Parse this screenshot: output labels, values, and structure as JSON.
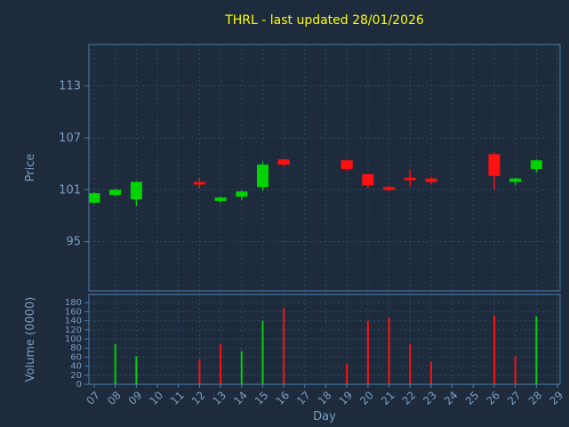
{
  "chart_data": {
    "type": "candlestick",
    "title": "THRL - last updated 28/01/2026",
    "xlabel": "Day",
    "ylabel_price": "Price",
    "ylabel_volume": "Volume (0000)",
    "x_categories": [
      "07",
      "08",
      "09",
      "10",
      "11",
      "12",
      "13",
      "14",
      "15",
      "16",
      "17",
      "18",
      "19",
      "20",
      "21",
      "22",
      "23",
      "24",
      "25",
      "26",
      "27",
      "28",
      "29"
    ],
    "price_ticks": [
      95,
      101,
      107,
      113
    ],
    "volume_ticks": [
      0,
      20,
      40,
      60,
      80,
      100,
      120,
      140,
      160,
      180
    ],
    "price_axis_range": [
      89.3,
      117.8
    ],
    "volume_axis_range": [
      0,
      198
    ],
    "grid": true,
    "colors": {
      "background": "#1d2b3c",
      "grid": "#2e4d6b",
      "axis": "#4d7fae",
      "text": "#7b9ec2",
      "title": "#ffff00",
      "up": "#00d400",
      "down": "#ff1111"
    },
    "candles": [
      {
        "day": "07",
        "open": 99.5,
        "high": 100.7,
        "low": 99.4,
        "close": 100.6
      },
      {
        "day": "08",
        "open": 100.4,
        "high": 101.1,
        "low": 100.3,
        "close": 101.0
      },
      {
        "day": "09",
        "open": 99.9,
        "high": 102.0,
        "low": 99.1,
        "close": 101.9
      },
      {
        "day": "12",
        "open": 101.9,
        "high": 102.4,
        "low": 101.1,
        "close": 101.6
      },
      {
        "day": "13",
        "open": 99.7,
        "high": 100.2,
        "low": 99.5,
        "close": 100.1
      },
      {
        "day": "14",
        "open": 100.2,
        "high": 100.9,
        "low": 99.8,
        "close": 100.8
      },
      {
        "day": "15",
        "open": 101.3,
        "high": 104.2,
        "low": 100.9,
        "close": 103.9
      },
      {
        "day": "16",
        "open": 104.5,
        "high": 104.6,
        "low": 103.7,
        "close": 103.9
      },
      {
        "day": "19",
        "open": 104.4,
        "high": 104.5,
        "low": 103.2,
        "close": 103.4
      },
      {
        "day": "20",
        "open": 102.8,
        "high": 102.9,
        "low": 101.2,
        "close": 101.5
      },
      {
        "day": "21",
        "open": 101.3,
        "high": 101.5,
        "low": 100.8,
        "close": 101.0
      },
      {
        "day": "22",
        "open": 102.4,
        "high": 103.3,
        "low": 101.4,
        "close": 102.1
      },
      {
        "day": "23",
        "open": 102.3,
        "high": 102.5,
        "low": 101.6,
        "close": 101.9
      },
      {
        "day": "26",
        "open": 105.1,
        "high": 105.3,
        "low": 101.0,
        "close": 102.6
      },
      {
        "day": "27",
        "open": 101.9,
        "high": 102.4,
        "low": 101.5,
        "close": 102.3
      },
      {
        "day": "28",
        "open": 103.4,
        "high": 104.5,
        "low": 103.0,
        "close": 104.4
      }
    ],
    "volumes": [
      {
        "day": "08",
        "value": 88,
        "dir": "up"
      },
      {
        "day": "09",
        "value": 62,
        "dir": "up"
      },
      {
        "day": "12",
        "value": 55,
        "dir": "down"
      },
      {
        "day": "13",
        "value": 88,
        "dir": "down"
      },
      {
        "day": "14",
        "value": 73,
        "dir": "up"
      },
      {
        "day": "15",
        "value": 140,
        "dir": "up"
      },
      {
        "day": "16",
        "value": 168,
        "dir": "down"
      },
      {
        "day": "19",
        "value": 45,
        "dir": "down"
      },
      {
        "day": "20",
        "value": 140,
        "dir": "down"
      },
      {
        "day": "21",
        "value": 147,
        "dir": "down"
      },
      {
        "day": "22",
        "value": 90,
        "dir": "down"
      },
      {
        "day": "23",
        "value": 50,
        "dir": "down"
      },
      {
        "day": "26",
        "value": 152,
        "dir": "down"
      },
      {
        "day": "27",
        "value": 62,
        "dir": "down"
      },
      {
        "day": "28",
        "value": 150,
        "dir": "up"
      }
    ]
  }
}
